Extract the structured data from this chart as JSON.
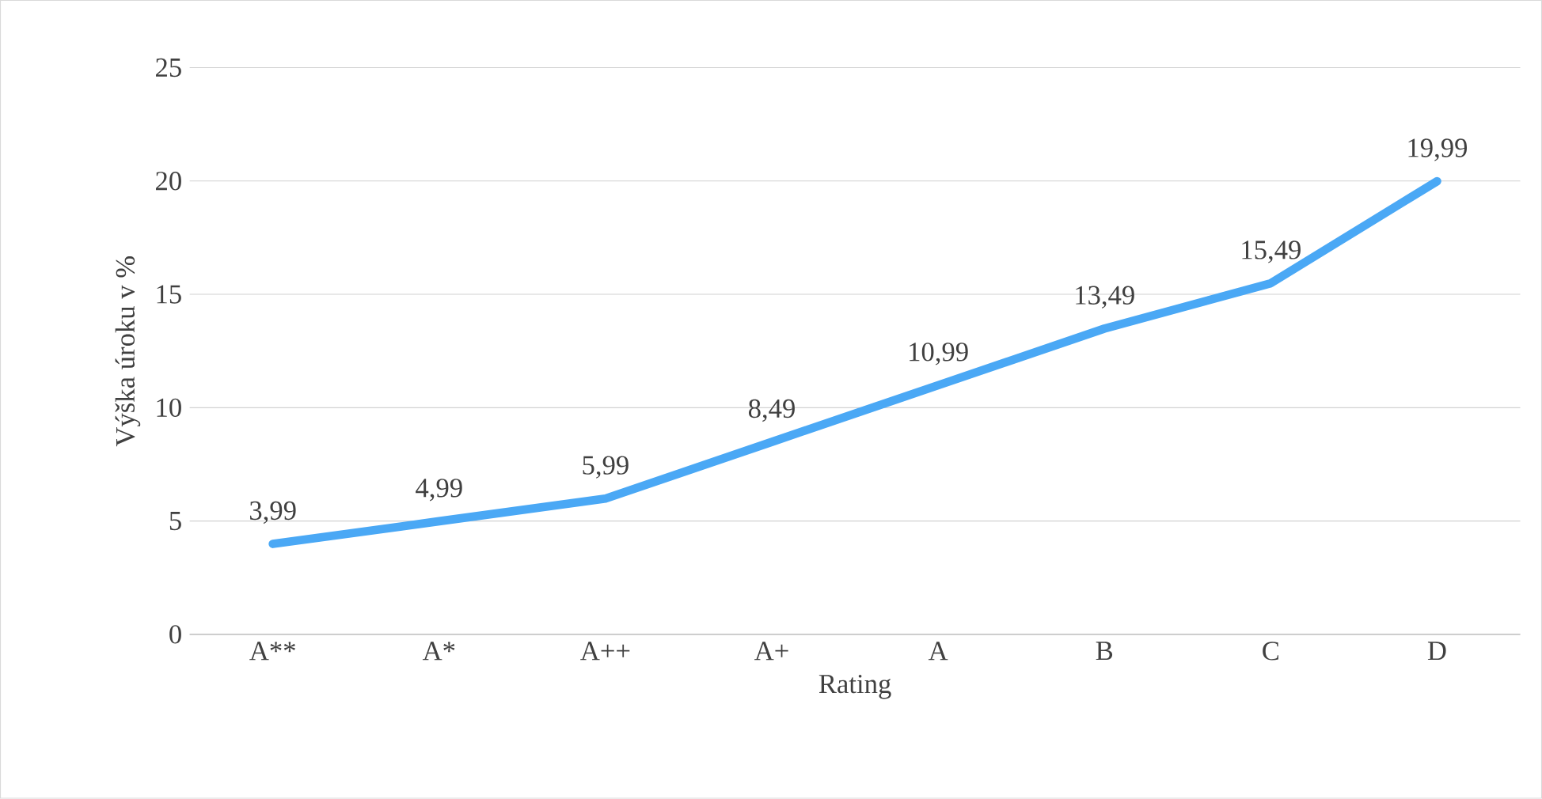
{
  "chart_data": {
    "type": "line",
    "xlabel": "Rating",
    "ylabel": "Výška úroku v %",
    "categories": [
      "A**",
      "A*",
      "A++",
      "A+",
      "A",
      "B",
      "C",
      "D"
    ],
    "values": [
      3.99,
      4.99,
      5.99,
      8.49,
      10.99,
      13.49,
      15.49,
      19.99
    ],
    "value_labels": [
      "3,99",
      "4,99",
      "5,99",
      "8,49",
      "10,99",
      "13,49",
      "15,49",
      "19,99"
    ],
    "color": "#4aa8f5",
    "ylim": [
      0,
      25
    ],
    "yticks": [
      0,
      5,
      10,
      15,
      20,
      25
    ],
    "grid": "y"
  }
}
